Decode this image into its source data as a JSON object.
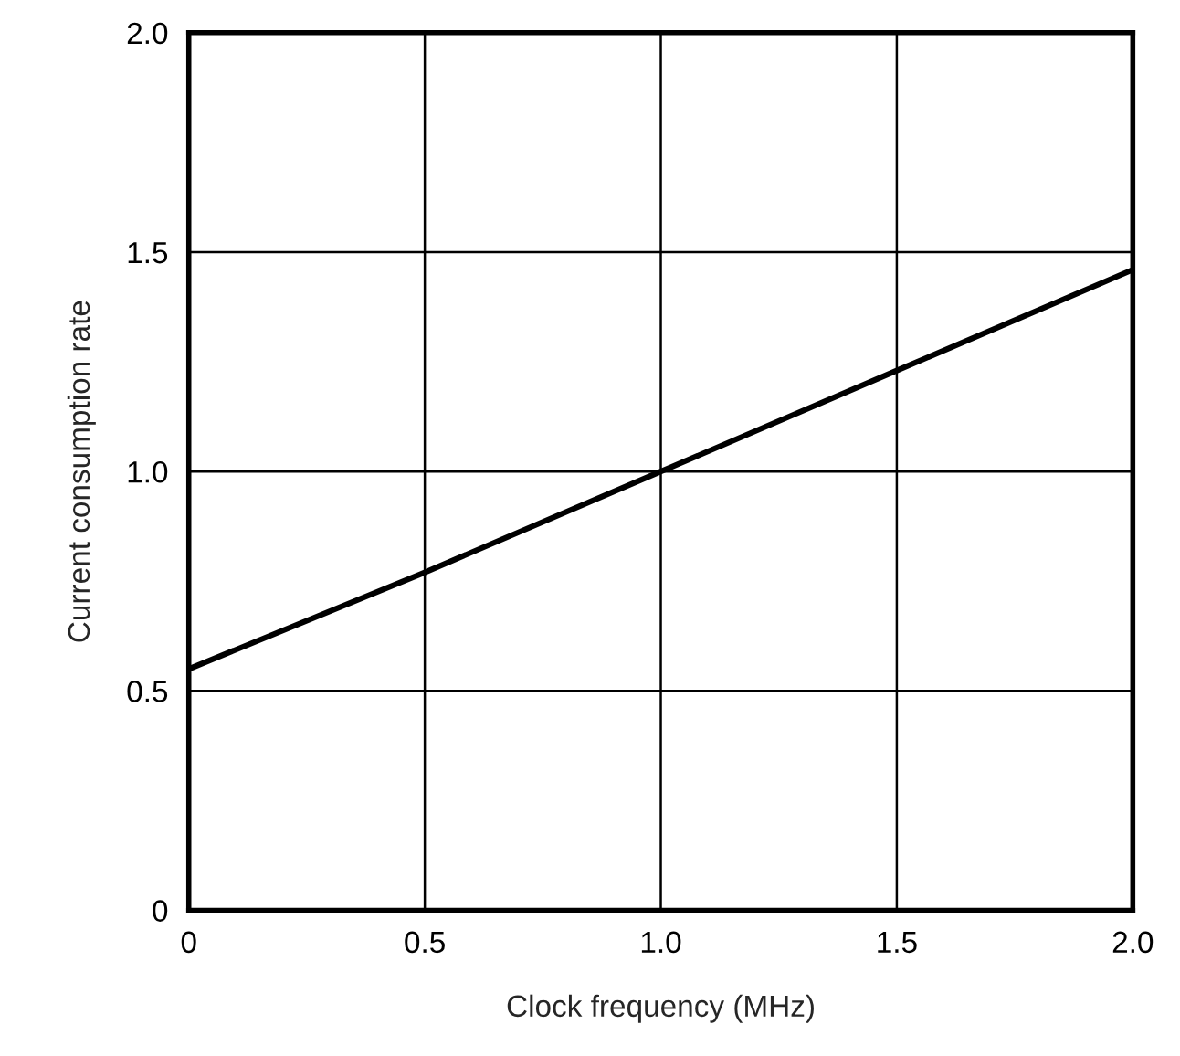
{
  "chart_data": {
    "type": "line",
    "xlabel": "Clock frequency (MHz)",
    "ylabel": "Current consumption rate",
    "x": [
      0,
      0.5,
      1.0,
      1.5,
      2.0
    ],
    "series": [
      {
        "color": "#000000",
        "values": [
          0.55,
          0.77,
          1.0,
          1.23,
          1.46
        ]
      }
    ],
    "xlim": [
      0,
      2.0
    ],
    "ylim": [
      0,
      2.0
    ],
    "xticks": [
      0,
      0.5,
      {
        "value": 1.0,
        "label": "1.0"
      },
      1.5,
      {
        "value": 2.0,
        "label": "2.0"
      }
    ],
    "yticks": [
      0,
      0.5,
      {
        "value": 1.0,
        "label": "1.0"
      },
      1.5,
      {
        "value": 2.0,
        "label": "2.0"
      }
    ],
    "grid": true,
    "line_style": "solid",
    "marker": "none"
  }
}
